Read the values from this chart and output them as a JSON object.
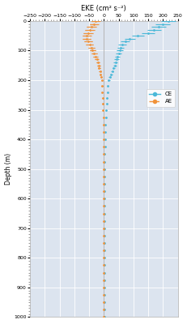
{
  "title": "EKE (cm² s⁻²)",
  "ylabel": "Depth (m)",
  "xlim": [
    -250,
    250
  ],
  "ylim": [
    1000,
    0
  ],
  "xticks": [
    -250,
    -200,
    -150,
    -100,
    -50,
    0,
    50,
    100,
    150,
    200,
    250
  ],
  "yticks": [
    0,
    100,
    200,
    300,
    400,
    500,
    600,
    700,
    800,
    900,
    1000
  ],
  "bg_color": "#dce4ef",
  "grid_color": "white",
  "depths": [
    0,
    10,
    20,
    30,
    40,
    50,
    60,
    70,
    80,
    90,
    100,
    110,
    120,
    130,
    140,
    150,
    160,
    170,
    180,
    190,
    200,
    220,
    240,
    260,
    280,
    300,
    325,
    350,
    375,
    400,
    425,
    450,
    475,
    500,
    525,
    550,
    575,
    600,
    625,
    650,
    675,
    700,
    725,
    750,
    775,
    800,
    825,
    850,
    875,
    900,
    925,
    950,
    975,
    1000
  ],
  "CE_values": [
    218,
    200,
    185,
    170,
    150,
    115,
    88,
    72,
    62,
    57,
    53,
    50,
    46,
    43,
    40,
    37,
    33,
    29,
    24,
    20,
    17,
    14,
    12,
    10,
    9,
    8,
    7,
    6,
    5,
    4,
    4,
    3,
    3,
    3,
    3,
    3,
    2,
    2,
    2,
    2,
    2,
    2,
    2,
    2,
    1,
    1,
    1,
    1,
    1,
    1,
    1,
    1,
    1,
    1
  ],
  "AE_values": [
    -28,
    -33,
    -42,
    -48,
    -53,
    -58,
    -58,
    -53,
    -48,
    -43,
    -38,
    -33,
    -28,
    -23,
    -20,
    -18,
    -16,
    -13,
    -11,
    -9,
    -7,
    -6,
    -5,
    -4,
    -3,
    -3,
    -2,
    -2,
    -1,
    -1,
    -1,
    -1,
    -1,
    0,
    0,
    0,
    0,
    0,
    0,
    0,
    0,
    0,
    0,
    0,
    0,
    0,
    0,
    0,
    0,
    0,
    0,
    0,
    0,
    0
  ],
  "CE_err_lo": [
    25,
    25,
    25,
    24,
    23,
    20,
    18,
    16,
    14,
    12,
    11,
    10,
    9,
    8,
    7,
    6,
    5,
    4,
    4,
    3,
    3,
    2,
    2,
    2,
    2,
    2,
    1,
    1,
    1,
    1,
    1,
    1,
    1,
    1,
    1,
    1,
    1,
    1,
    1,
    1,
    1,
    1,
    1,
    1,
    1,
    1,
    1,
    1,
    1,
    1,
    1,
    1,
    1,
    1
  ],
  "CE_err_hi": [
    25,
    25,
    25,
    24,
    23,
    20,
    18,
    16,
    14,
    12,
    11,
    10,
    9,
    8,
    7,
    6,
    5,
    4,
    4,
    3,
    3,
    2,
    2,
    2,
    2,
    2,
    1,
    1,
    1,
    1,
    1,
    1,
    1,
    1,
    1,
    1,
    1,
    1,
    1,
    1,
    1,
    1,
    1,
    1,
    1,
    1,
    1,
    1,
    1,
    1,
    1,
    1,
    1,
    1
  ],
  "AE_err_lo": [
    15,
    15,
    16,
    17,
    16,
    15,
    14,
    13,
    12,
    11,
    10,
    9,
    8,
    7,
    6,
    5,
    5,
    4,
    3,
    3,
    2,
    2,
    2,
    2,
    2,
    1,
    1,
    1,
    1,
    1,
    1,
    1,
    1,
    1,
    1,
    1,
    1,
    1,
    1,
    1,
    1,
    1,
    1,
    1,
    1,
    1,
    1,
    1,
    1,
    1,
    1,
    1,
    1,
    1
  ],
  "AE_err_hi": [
    15,
    15,
    16,
    17,
    16,
    15,
    14,
    13,
    12,
    11,
    10,
    9,
    8,
    7,
    6,
    5,
    5,
    4,
    3,
    3,
    2,
    2,
    2,
    2,
    2,
    1,
    1,
    1,
    1,
    1,
    1,
    1,
    1,
    1,
    1,
    1,
    1,
    1,
    1,
    1,
    1,
    1,
    1,
    1,
    1,
    1,
    1,
    1,
    1,
    1,
    1,
    1,
    1,
    1
  ],
  "CE_color": "#4ab8d8",
  "AE_color": "#f0923a",
  "figsize": [
    2.31,
    4.0
  ],
  "dpi": 100
}
